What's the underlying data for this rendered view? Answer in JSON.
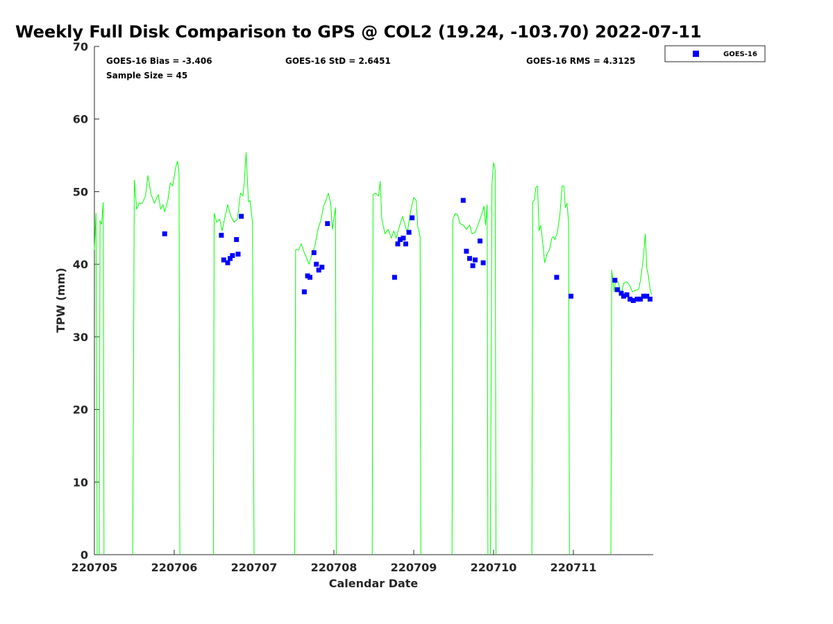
{
  "chart_data": {
    "type": "scatter",
    "title": "Weekly Full Disk Comparison to GPS @ COL2 (19.24, -103.70) 2022-07-11",
    "xlabel": "Calendar Date",
    "ylabel": "TPW (mm)",
    "ylim": [
      0,
      70
    ],
    "yticks": [
      "0",
      "10",
      "20",
      "30",
      "40",
      "50",
      "60",
      "70"
    ],
    "xlim": [
      0,
      7
    ],
    "xticks": [
      "220705",
      "220706",
      "220707",
      "220708",
      "220709",
      "220710",
      "220711"
    ],
    "grid": false,
    "legend_position": "top-right",
    "stats": {
      "bias": "GOES-16 Bias = -3.406",
      "std": "GOES-16 StD = 2.6451",
      "rms": "GOES-16 RMS = 4.3125",
      "sample": "Sample Size = 45"
    },
    "series": [
      {
        "name": "GOES-16",
        "kind": "scatter",
        "color": "#0000ff",
        "points": [
          [
            0.88,
            44.2
          ],
          [
            1.59,
            44.0
          ],
          [
            1.62,
            40.6
          ],
          [
            1.67,
            40.2
          ],
          [
            1.7,
            40.8
          ],
          [
            1.73,
            41.2
          ],
          [
            1.78,
            43.4
          ],
          [
            1.8,
            41.4
          ],
          [
            1.84,
            46.6
          ],
          [
            2.63,
            36.2
          ],
          [
            2.67,
            38.4
          ],
          [
            2.7,
            38.2
          ],
          [
            2.75,
            41.6
          ],
          [
            2.78,
            40.0
          ],
          [
            2.81,
            39.2
          ],
          [
            2.85,
            39.6
          ],
          [
            2.92,
            45.6
          ],
          [
            3.76,
            38.2
          ],
          [
            3.8,
            42.8
          ],
          [
            3.83,
            43.4
          ],
          [
            3.87,
            43.6
          ],
          [
            3.9,
            42.8
          ],
          [
            3.94,
            44.4
          ],
          [
            3.98,
            46.4
          ],
          [
            4.62,
            48.8
          ],
          [
            4.66,
            41.8
          ],
          [
            4.7,
            40.8
          ],
          [
            4.74,
            39.8
          ],
          [
            4.77,
            40.6
          ],
          [
            4.83,
            43.2
          ],
          [
            4.87,
            40.2
          ],
          [
            5.79,
            38.2
          ],
          [
            5.97,
            35.6
          ],
          [
            6.52,
            37.8
          ],
          [
            6.55,
            36.5
          ],
          [
            6.6,
            36.0
          ],
          [
            6.63,
            35.6
          ],
          [
            6.67,
            35.8
          ],
          [
            6.71,
            35.2
          ],
          [
            6.75,
            35.0
          ],
          [
            6.8,
            35.2
          ],
          [
            6.84,
            35.2
          ],
          [
            6.88,
            35.6
          ],
          [
            6.92,
            35.6
          ],
          [
            6.96,
            35.2
          ]
        ]
      },
      {
        "kind": "line",
        "color": "#00ff00",
        "segments": [
          [
            [
              0.0,
              42.0
            ],
            [
              0.02,
              47.0
            ],
            [
              0.035,
              0.0
            ]
          ],
          [
            [
              0.06,
              0.0
            ],
            [
              0.07,
              46.0
            ],
            [
              0.09,
              45.5
            ],
            [
              0.11,
              48.5
            ],
            [
              0.12,
              0.0
            ]
          ],
          [
            [
              0.48,
              0.0
            ],
            [
              0.5,
              51.6
            ],
            [
              0.53,
              47.6
            ],
            [
              0.56,
              48.4
            ],
            [
              0.6,
              48.4
            ],
            [
              0.64,
              49.4
            ],
            [
              0.67,
              52.2
            ],
            [
              0.71,
              49.6
            ],
            [
              0.75,
              48.4
            ],
            [
              0.8,
              49.6
            ],
            [
              0.83,
              47.6
            ],
            [
              0.86,
              48.2
            ],
            [
              0.88,
              47.2
            ],
            [
              0.92,
              48.8
            ],
            [
              0.95,
              51.2
            ],
            [
              0.98,
              50.8
            ],
            [
              1.02,
              53.4
            ],
            [
              1.04,
              54.2
            ],
            [
              1.06,
              52.6
            ],
            [
              1.07,
              0.0
            ]
          ],
          [
            [
              1.49,
              0.0
            ],
            [
              1.5,
              47.0
            ],
            [
              1.53,
              45.8
            ],
            [
              1.57,
              46.2
            ],
            [
              1.6,
              44.6
            ],
            [
              1.63,
              46.2
            ],
            [
              1.67,
              48.2
            ],
            [
              1.71,
              46.6
            ],
            [
              1.75,
              45.8
            ],
            [
              1.79,
              46.2
            ],
            [
              1.83,
              49.8
            ],
            [
              1.86,
              49.4
            ],
            [
              1.88,
              51.6
            ],
            [
              1.9,
              55.4
            ],
            [
              1.93,
              48.6
            ],
            [
              1.95,
              48.8
            ],
            [
              1.98,
              45.8
            ],
            [
              2.0,
              0.0
            ]
          ],
          [
            [
              2.51,
              0.0
            ],
            [
              2.52,
              42.0
            ],
            [
              2.56,
              42.0
            ],
            [
              2.59,
              42.8
            ],
            [
              2.63,
              41.6
            ],
            [
              2.66,
              40.8
            ],
            [
              2.69,
              40.0
            ],
            [
              2.72,
              41.2
            ],
            [
              2.76,
              42.4
            ],
            [
              2.8,
              44.8
            ],
            [
              2.84,
              46.2
            ],
            [
              2.87,
              48.0
            ],
            [
              2.9,
              48.8
            ],
            [
              2.93,
              49.8
            ],
            [
              2.96,
              48.4
            ],
            [
              2.98,
              44.8
            ],
            [
              3.02,
              47.8
            ],
            [
              3.03,
              0.0
            ]
          ],
          [
            [
              3.48,
              0.0
            ],
            [
              3.49,
              49.6
            ],
            [
              3.52,
              49.8
            ],
            [
              3.56,
              49.4
            ],
            [
              3.58,
              51.4
            ],
            [
              3.6,
              46.2
            ],
            [
              3.64,
              44.2
            ],
            [
              3.68,
              44.8
            ],
            [
              3.72,
              43.6
            ],
            [
              3.75,
              44.6
            ],
            [
              3.78,
              43.6
            ],
            [
              3.82,
              45.2
            ],
            [
              3.86,
              46.6
            ],
            [
              3.89,
              45.4
            ],
            [
              3.92,
              44.4
            ],
            [
              3.96,
              47.2
            ],
            [
              4.0,
              49.2
            ],
            [
              4.03,
              48.8
            ],
            [
              4.05,
              45.2
            ],
            [
              4.08,
              43.8
            ],
            [
              4.09,
              0.0
            ]
          ],
          [
            [
              4.48,
              0.0
            ],
            [
              4.49,
              46.2
            ],
            [
              4.52,
              47.0
            ],
            [
              4.55,
              46.8
            ],
            [
              4.58,
              45.6
            ],
            [
              4.62,
              45.4
            ],
            [
              4.66,
              44.8
            ],
            [
              4.7,
              45.4
            ],
            [
              4.73,
              44.2
            ],
            [
              4.77,
              44.4
            ],
            [
              4.81,
              45.6
            ],
            [
              4.85,
              46.8
            ],
            [
              4.88,
              48.0
            ],
            [
              4.9,
              45.4
            ],
            [
              4.92,
              48.2
            ],
            [
              4.93,
              0.0
            ]
          ],
          [
            [
              4.96,
              0.0
            ],
            [
              4.98,
              51.0
            ],
            [
              5.0,
              54.0
            ],
            [
              5.02,
              53.0
            ],
            [
              5.03,
              0.0
            ]
          ],
          [
            [
              5.48,
              0.0
            ],
            [
              5.49,
              48.6
            ],
            [
              5.51,
              48.8
            ],
            [
              5.53,
              50.6
            ],
            [
              5.55,
              50.8
            ],
            [
              5.57,
              44.6
            ],
            [
              5.59,
              45.4
            ],
            [
              5.62,
              42.6
            ],
            [
              5.64,
              40.2
            ],
            [
              5.67,
              41.4
            ],
            [
              5.7,
              42.0
            ],
            [
              5.73,
              43.6
            ],
            [
              5.75,
              43.8
            ],
            [
              5.77,
              43.4
            ],
            [
              5.8,
              44.4
            ],
            [
              5.83,
              46.8
            ],
            [
              5.86,
              50.8
            ],
            [
              5.88,
              50.8
            ],
            [
              5.9,
              47.8
            ],
            [
              5.92,
              48.4
            ],
            [
              5.94,
              45.8
            ],
            [
              5.95,
              0.0
            ]
          ],
          [
            [
              6.47,
              0.0
            ],
            [
              6.48,
              39.2
            ],
            [
              6.51,
              36.2
            ],
            [
              6.53,
              37.8
            ],
            [
              6.56,
              37.6
            ],
            [
              6.6,
              35.8
            ],
            [
              6.63,
              37.4
            ],
            [
              6.67,
              37.6
            ],
            [
              6.71,
              37.0
            ],
            [
              6.74,
              36.2
            ],
            [
              6.78,
              36.4
            ],
            [
              6.82,
              36.6
            ],
            [
              6.84,
              37.8
            ],
            [
              6.86,
              39.4
            ],
            [
              6.88,
              41.2
            ],
            [
              6.9,
              44.2
            ],
            [
              6.92,
              39.4
            ],
            [
              6.94,
              38.4
            ],
            [
              6.96,
              36.6
            ],
            [
              6.98,
              35.8
            ]
          ]
        ]
      }
    ]
  }
}
